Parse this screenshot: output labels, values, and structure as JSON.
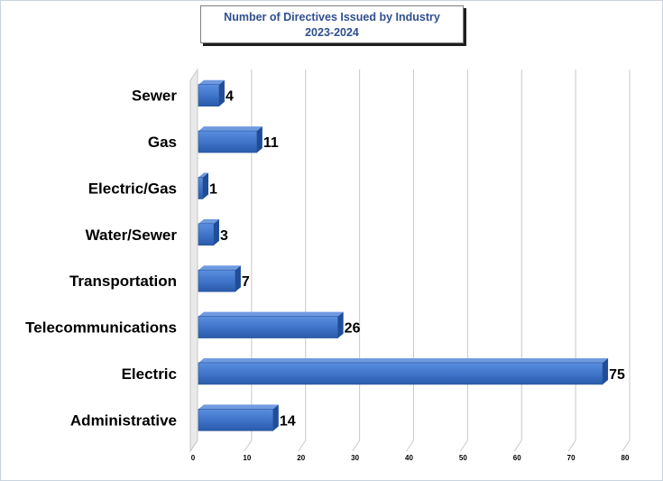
{
  "chart_data": {
    "type": "bar",
    "orientation": "horizontal",
    "title": "Number of Directives Issued by Industry",
    "subtitle": "2023-2024",
    "categories": [
      "Sewer",
      "Gas",
      "Electric/Gas",
      "Water/Sewer",
      "Transportation",
      "Telecommunications",
      "Electric",
      "Administrative"
    ],
    "values": [
      4,
      11,
      1,
      3,
      7,
      26,
      75,
      14
    ],
    "xticks": [
      "0",
      "10",
      "20",
      "30",
      "40",
      "50",
      "60",
      "70",
      "80"
    ],
    "xlim": [
      0,
      80
    ],
    "grid": true,
    "legend": "none",
    "colors": {
      "bar_face": "#3d72c8",
      "bar_top": "#6f9ae0",
      "bar_side": "#1f4d97",
      "grid": "#c8c8c8"
    }
  }
}
